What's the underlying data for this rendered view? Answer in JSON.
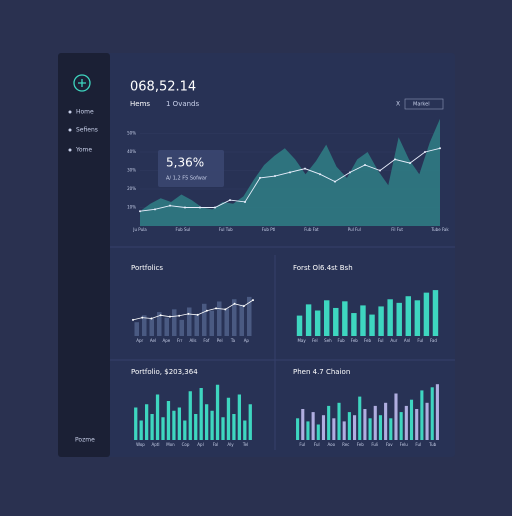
{
  "sidebar": {
    "items": [
      "Home",
      "Sefiens",
      "Yome"
    ],
    "footer": "Pozme"
  },
  "header": {
    "value": "068,52.14",
    "tabs": [
      "Hems",
      "1 Ovands"
    ],
    "close": "X",
    "dropdown": "Markel"
  },
  "main_chart": {
    "type": "area-line",
    "ylim": [
      0,
      60
    ],
    "yticks": [
      {
        "value": 50,
        "label": "50%"
      },
      {
        "value": 40,
        "label": "40%"
      },
      {
        "value": 30,
        "label": "30%"
      },
      {
        "value": 20,
        "label": "20%"
      },
      {
        "value": 10,
        "label": "10%"
      }
    ],
    "xlabels": [
      "Ju Pula",
      "Fub Sul",
      "Ful Tub",
      "Fub Ptl",
      "Fub Fat",
      "Pul Ful",
      "Fil Fut",
      "Tube Fak"
    ],
    "area": [
      8,
      12,
      15,
      13,
      17,
      14,
      10,
      9,
      13,
      12,
      16,
      25,
      33,
      38,
      42,
      36,
      28,
      35,
      44,
      32,
      26,
      36,
      40,
      30,
      22,
      48,
      36,
      28,
      45,
      58
    ],
    "line": [
      8,
      9,
      11,
      10,
      10,
      10,
      14,
      13,
      26,
      27,
      29,
      31,
      28,
      24,
      29,
      33,
      30,
      36,
      34,
      40,
      42
    ],
    "area_color": "#2f7f86",
    "line_color": "#e8eefc",
    "callout": {
      "value": "5,36%",
      "label": "A/ 1,2 F5 Sofwar"
    }
  },
  "panels": [
    {
      "title": "Portfolics",
      "ylim": [
        0,
        100
      ],
      "bar_color": "#4a5a82",
      "line_color": "#ffffff",
      "bars": [
        30,
        45,
        38,
        52,
        40,
        58,
        35,
        62,
        48,
        70,
        55,
        75,
        60,
        80,
        68,
        85
      ],
      "line": [
        35,
        40,
        38,
        45,
        42,
        44,
        48,
        46,
        55,
        60,
        58,
        70,
        65,
        78
      ],
      "xlabels": [
        "Apr",
        "Ael",
        "Ape",
        "Frr",
        "Alls",
        "Fof",
        "Pel",
        "Ta",
        "Ap"
      ]
    },
    {
      "title": "Forst Ol6.4st Bsh",
      "ylim": [
        0,
        100
      ],
      "bar_color": "#3ed6c0",
      "bars": [
        40,
        62,
        50,
        70,
        55,
        68,
        45,
        60,
        42,
        58,
        72,
        65,
        78,
        70,
        85,
        90
      ],
      "xlabels": [
        "May",
        "Fel",
        "Seh",
        "Fub",
        "Feb",
        "Feb",
        "Ful",
        "Aur",
        "Anl",
        "Ful",
        "Fad"
      ]
    },
    {
      "title": "Portfolio, $203,364",
      "ylim": [
        0,
        100
      ],
      "bar_color": "#3ed6c0",
      "bars": [
        50,
        30,
        55,
        40,
        70,
        35,
        60,
        45,
        50,
        30,
        75,
        40,
        80,
        55,
        45,
        85,
        35,
        65,
        40,
        70,
        30,
        55
      ],
      "xlabels": [
        "Wop",
        "Aptl",
        "Mon",
        "Cop",
        "Apl",
        "Fal",
        "Aly",
        "Tel"
      ]
    },
    {
      "title": "Phen 4.7 Chaion",
      "ylim": [
        0,
        100
      ],
      "bar_color": "#3ed6c0",
      "bar_color2": "#b0aee0",
      "bars": [
        35,
        50,
        30,
        45,
        25,
        40,
        55,
        35,
        60,
        30,
        45,
        40,
        70,
        50,
        35,
        55,
        40,
        60,
        35,
        75,
        45,
        55,
        65,
        50,
        80,
        60,
        85,
        90
      ],
      "xlabels": [
        "Ful",
        "Ful",
        "Aoo",
        "Rec",
        "Feb",
        "Fuli",
        "Fav",
        "Felu",
        "Ful",
        "Tub"
      ]
    }
  ]
}
